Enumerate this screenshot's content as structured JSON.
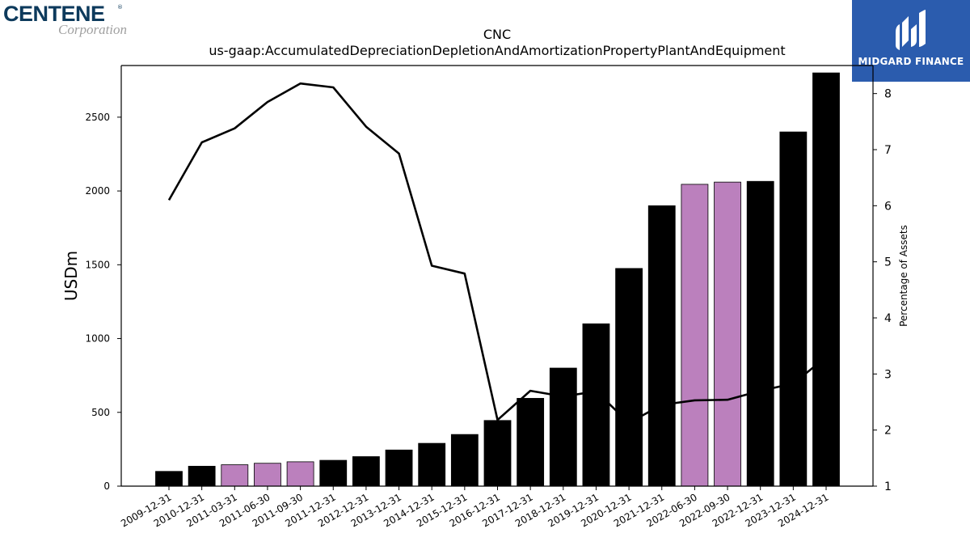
{
  "brand": {
    "name": "CENTENE",
    "registered": "®",
    "sub": "Corporation"
  },
  "badge": {
    "label": "MIDGARD FINANCE",
    "color": "#2b5cae"
  },
  "chart_data": {
    "type": "bar",
    "title": "CNC",
    "subtitle": "us-gaap:AccumulatedDepreciationDepletionAndAmortizationPropertyPlantAndEquipment",
    "ylabel": "USDm",
    "y2label": "Percentage of Assets",
    "ylim": [
      0,
      2850
    ],
    "y2lim": [
      1,
      8.5
    ],
    "yticks": [
      0,
      500,
      1000,
      1500,
      2000,
      2500
    ],
    "y2ticks": [
      1,
      2,
      3,
      4,
      5,
      6,
      7,
      8
    ],
    "grid": false,
    "colors": {
      "annual": "#000000",
      "quarterly": "#bb80bd",
      "line": "#000000"
    },
    "categories": [
      "2009-12-31",
      "2010-12-31",
      "2011-03-31",
      "2011-06-30",
      "2011-09-30",
      "2011-12-31",
      "2012-12-31",
      "2013-12-31",
      "2014-12-31",
      "2015-12-31",
      "2016-12-31",
      "2017-12-31",
      "2018-12-31",
      "2019-12-31",
      "2020-12-31",
      "2021-12-31",
      "2022-06-30",
      "2022-09-30",
      "2022-12-31",
      "2023-12-31",
      "2024-12-31"
    ],
    "series": [
      {
        "kind": "bar",
        "values": [
          100,
          135,
          145,
          155,
          165,
          175,
          200,
          245,
          290,
          350,
          445,
          595,
          800,
          1100,
          1475,
          1900,
          2045,
          2060,
          2065,
          2400,
          2800
        ],
        "highlight": [
          false,
          false,
          true,
          true,
          true,
          false,
          false,
          false,
          false,
          false,
          false,
          false,
          false,
          false,
          false,
          false,
          true,
          true,
          false,
          false,
          false
        ]
      },
      {
        "kind": "line",
        "axis": "right",
        "values": [
          6.1,
          7.13,
          7.38,
          7.85,
          8.18,
          8.11,
          7.41,
          6.93,
          4.93,
          4.79,
          2.18,
          2.7,
          2.6,
          2.69,
          2.13,
          2.45,
          2.53,
          2.54,
          2.7,
          2.83,
          3.3
        ]
      }
    ]
  }
}
